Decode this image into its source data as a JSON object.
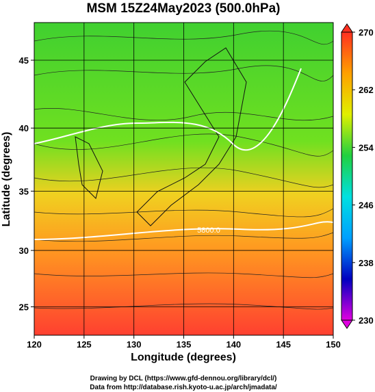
{
  "chart_data": {
    "type": "map",
    "title": "MSM 15Z24May2023 (500.0hPa)",
    "x_label": "Longitude (degrees)",
    "y_label": "Latitude  (degrees)",
    "xlim": [
      120,
      150
    ],
    "xticks": [
      120,
      125,
      130,
      135,
      140,
      145,
      150
    ],
    "ylim": [
      22.4,
      47.6
    ],
    "yticks": [
      25,
      30,
      35,
      40,
      45
    ],
    "yscale": "mercator",
    "grid": true,
    "annotations": [
      "5800.0"
    ],
    "colorbar": {
      "lim": [
        230,
        270
      ],
      "ticks": [
        230,
        238,
        246,
        254,
        262,
        270
      ],
      "colors": [
        "#e000e0",
        "#0000c0",
        "#00a0ff",
        "#00e0e0",
        "#20d040",
        "#e0f000",
        "#ffa000",
        "#ff3020"
      ]
    },
    "footer": [
      "Drawing by DCL (https://www.gfd-dennou.org/library/dcl/)",
      "Data from http://database.rish.kyoto-u.ac.jp/arch/jmadata/"
    ]
  }
}
